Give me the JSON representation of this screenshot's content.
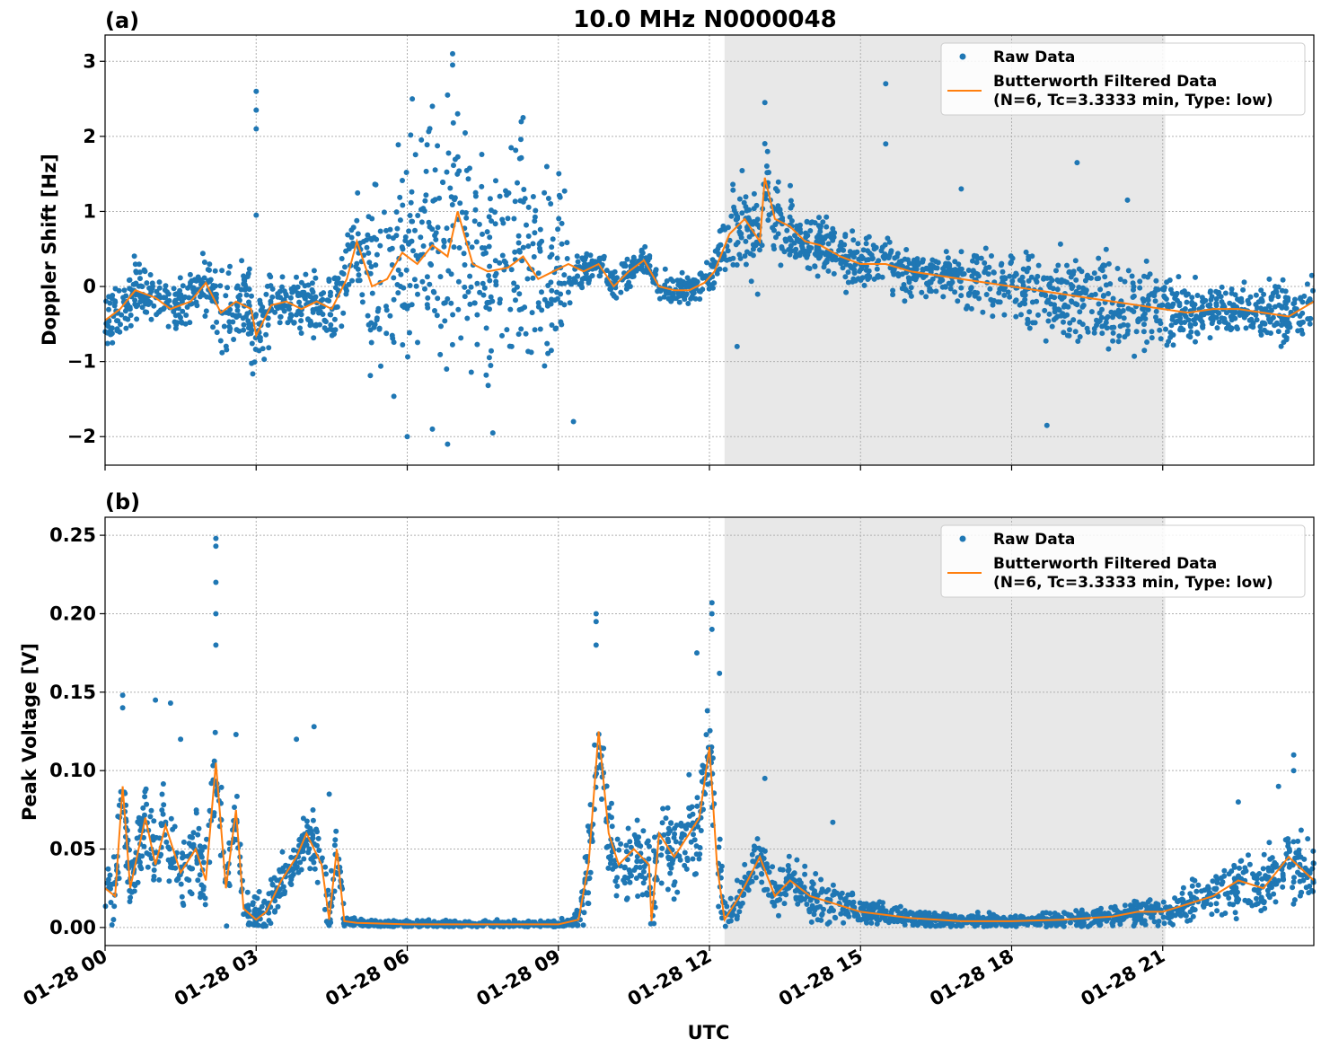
{
  "figure_title": "10.0 MHz N0000048",
  "xlabel": "UTC",
  "x_tick_labels": [
    "01-28 00",
    "01-28 03",
    "01-28 06",
    "01-28 09",
    "01-28 12",
    "01-28 15",
    "01-28 18",
    "01-28 21"
  ],
  "legend": {
    "raw": "Raw Data",
    "filtered_line1": "Butterworth Filtered Data",
    "filtered_line2": "(N=6, Tc=3.3333 min, Type: low)",
    "placement": "upper-right"
  },
  "colors": {
    "raw": "#1f77b4",
    "filtered": "#ff7f0e",
    "shade": "#e8e8e8"
  },
  "chart_data": [
    {
      "type": "scatter",
      "panel_label": "(a)",
      "title": "10.0 MHz N0000048",
      "xlabel": "",
      "ylabel": "Doppler Shift [Hz]",
      "x_unit": "hours UTC (2025-01-28)",
      "xlim": [
        0,
        24
      ],
      "ylim": [
        -2.38,
        3.35
      ],
      "y_ticks": [
        -2,
        -1,
        0,
        1,
        2,
        3
      ],
      "y_tick_labels": [
        "−2",
        "−1",
        "0",
        "1",
        "2",
        "3"
      ],
      "grid": true,
      "shaded_interval": [
        12.3,
        21.05
      ],
      "series": [
        {
          "name": "Butterworth Filtered Data",
          "x": [
            0,
            0.3,
            0.6,
            1.0,
            1.3,
            1.7,
            2.0,
            2.3,
            2.6,
            2.9,
            3.0,
            3.3,
            3.6,
            3.9,
            4.2,
            4.5,
            4.8,
            5.0,
            5.3,
            5.6,
            5.9,
            6.2,
            6.5,
            6.8,
            7.0,
            7.3,
            7.6,
            8.0,
            8.3,
            8.6,
            8.9,
            9.2,
            9.5,
            9.8,
            10.1,
            10.4,
            10.7,
            11.0,
            11.3,
            11.6,
            11.9,
            12.1,
            12.4,
            12.7,
            13.0,
            13.1,
            13.3,
            13.6,
            13.9,
            14.2,
            14.6,
            15.0,
            15.5,
            16.0,
            16.5,
            17.0,
            17.5,
            18.0,
            18.5,
            19.0,
            19.5,
            20.0,
            20.5,
            21.0,
            21.5,
            22.0,
            22.5,
            23.0,
            23.5,
            24.0
          ],
          "y": [
            -0.45,
            -0.3,
            -0.05,
            -0.15,
            -0.3,
            -0.2,
            0.05,
            -0.35,
            -0.2,
            -0.3,
            -0.65,
            -0.25,
            -0.2,
            -0.3,
            -0.2,
            -0.3,
            0.1,
            0.6,
            0.0,
            0.1,
            0.45,
            0.3,
            0.55,
            0.4,
            1.0,
            0.3,
            0.2,
            0.25,
            0.4,
            0.1,
            0.2,
            0.3,
            0.2,
            0.3,
            0.0,
            0.2,
            0.35,
            0.0,
            -0.05,
            -0.05,
            0.05,
            0.2,
            0.7,
            0.9,
            0.6,
            1.45,
            0.9,
            0.8,
            0.6,
            0.55,
            0.4,
            0.3,
            0.3,
            0.2,
            0.15,
            0.1,
            0.05,
            0.0,
            -0.05,
            -0.1,
            -0.15,
            -0.2,
            -0.25,
            -0.3,
            -0.35,
            -0.3,
            -0.3,
            -0.35,
            -0.4,
            -0.2
          ]
        },
        {
          "name": "Raw Data",
          "spread_x": [
            0,
            1,
            2,
            2.9,
            3.0,
            3.5,
            4.0,
            4.5,
            5.0,
            5.5,
            6.0,
            7.0,
            8.0,
            9.0,
            9.5,
            10.0,
            11.0,
            12.0,
            12.3,
            13.0,
            14.0,
            15.0,
            16.0,
            17.0,
            18.0,
            19.0,
            20.0,
            21.0,
            22.0,
            23.0,
            24.0
          ],
          "spread_y": [
            0.3,
            0.3,
            0.3,
            0.5,
            0.45,
            0.25,
            0.3,
            0.4,
            0.5,
            1.1,
            1.1,
            1.1,
            1.1,
            1.0,
            0.15,
            0.15,
            0.15,
            0.15,
            0.35,
            0.45,
            0.3,
            0.25,
            0.25,
            0.25,
            0.35,
            0.45,
            0.45,
            0.35,
            0.25,
            0.3,
            0.3
          ],
          "outliers": [
            [
              3.0,
              2.6
            ],
            [
              3.0,
              2.35
            ],
            [
              3.0,
              2.1
            ],
            [
              3.0,
              0.95
            ],
            [
              6.9,
              3.1
            ],
            [
              6.9,
              2.95
            ],
            [
              6.8,
              2.55
            ],
            [
              6.1,
              2.5
            ],
            [
              6.5,
              2.4
            ],
            [
              7.0,
              2.3
            ],
            [
              8.3,
              2.25
            ],
            [
              6.0,
              -2.0
            ],
            [
              6.5,
              -1.9
            ],
            [
              6.8,
              -2.1
            ],
            [
              7.7,
              -1.95
            ],
            [
              9.3,
              -1.8
            ],
            [
              15.5,
              2.7
            ],
            [
              15.5,
              1.9
            ],
            [
              18.7,
              -1.85
            ],
            [
              19.3,
              1.65
            ],
            [
              17.0,
              1.3
            ],
            [
              20.3,
              1.15
            ],
            [
              12.55,
              -0.8
            ],
            [
              13.1,
              2.45
            ]
          ]
        }
      ]
    },
    {
      "type": "scatter",
      "panel_label": "(b)",
      "title": "",
      "xlabel": "UTC",
      "ylabel": "Peak Voltage [V]",
      "x_unit": "hours UTC (2025-01-28)",
      "xlim": [
        0,
        24
      ],
      "ylim": [
        -0.0115,
        0.2615
      ],
      "y_ticks": [
        0.0,
        0.05,
        0.1,
        0.15,
        0.2,
        0.25
      ],
      "y_tick_labels": [
        "0.00",
        "0.05",
        "0.10",
        "0.15",
        "0.20",
        "0.25"
      ],
      "grid": true,
      "shaded_interval": [
        12.3,
        21.05
      ],
      "series": [
        {
          "name": "Butterworth Filtered Data",
          "x": [
            0,
            0.2,
            0.35,
            0.5,
            0.8,
            1.0,
            1.2,
            1.5,
            1.8,
            2.0,
            2.2,
            2.4,
            2.6,
            2.75,
            3.0,
            3.2,
            3.5,
            3.8,
            4.0,
            4.3,
            4.45,
            4.6,
            4.75,
            5.0,
            6.0,
            7.0,
            8.0,
            9.0,
            9.4,
            9.6,
            9.8,
            10.0,
            10.2,
            10.5,
            10.8,
            10.85,
            11.0,
            11.3,
            11.5,
            11.8,
            12.0,
            12.15,
            12.3,
            12.6,
            13.0,
            13.3,
            13.6,
            14.0,
            14.5,
            15.0,
            15.5,
            16.0,
            17.0,
            18.0,
            19.0,
            20.0,
            20.5,
            21.0,
            21.5,
            22.0,
            22.5,
            23.0,
            23.5,
            24.0
          ],
          "y": [
            0.025,
            0.02,
            0.09,
            0.025,
            0.07,
            0.04,
            0.065,
            0.035,
            0.05,
            0.03,
            0.105,
            0.025,
            0.075,
            0.012,
            0.005,
            0.01,
            0.03,
            0.045,
            0.06,
            0.04,
            0.005,
            0.05,
            0.004,
            0.003,
            0.002,
            0.002,
            0.002,
            0.002,
            0.005,
            0.04,
            0.125,
            0.06,
            0.04,
            0.05,
            0.04,
            0.004,
            0.06,
            0.045,
            0.055,
            0.07,
            0.115,
            0.04,
            0.005,
            0.02,
            0.045,
            0.02,
            0.03,
            0.02,
            0.015,
            0.01,
            0.008,
            0.006,
            0.004,
            0.004,
            0.005,
            0.007,
            0.01,
            0.01,
            0.015,
            0.02,
            0.03,
            0.025,
            0.045,
            0.03
          ]
        },
        {
          "name": "Raw Data",
          "spread_x": [
            0,
            2.5,
            2.8,
            3.2,
            4.6,
            4.8,
            9.3,
            9.6,
            10.0,
            11.0,
            12.2,
            12.4,
            13.0,
            14.0,
            15.0,
            16.0,
            18.0,
            20.0,
            21.0,
            22.0,
            23.0,
            24.0
          ],
          "spread_y": [
            0.018,
            0.02,
            0.01,
            0.012,
            0.015,
            0.002,
            0.002,
            0.02,
            0.02,
            0.02,
            0.02,
            0.008,
            0.012,
            0.01,
            0.006,
            0.004,
            0.003,
            0.005,
            0.007,
            0.012,
            0.016,
            0.016
          ],
          "outliers": [
            [
              0.35,
              0.148
            ],
            [
              0.35,
              0.14
            ],
            [
              1.0,
              0.145
            ],
            [
              1.3,
              0.143
            ],
            [
              1.5,
              0.12
            ],
            [
              2.2,
              0.248
            ],
            [
              2.2,
              0.243
            ],
            [
              2.2,
              0.22
            ],
            [
              2.2,
              0.2
            ],
            [
              2.2,
              0.18
            ],
            [
              2.6,
              0.123
            ],
            [
              3.8,
              0.12
            ],
            [
              4.15,
              0.128
            ],
            [
              4.45,
              0.085
            ],
            [
              9.75,
              0.2
            ],
            [
              9.75,
              0.195
            ],
            [
              9.75,
              0.18
            ],
            [
              11.75,
              0.175
            ],
            [
              12.05,
              0.207
            ],
            [
              12.05,
              0.2
            ],
            [
              12.05,
              0.19
            ],
            [
              12.2,
              0.162
            ],
            [
              13.1,
              0.095
            ],
            [
              14.45,
              0.067
            ],
            [
              23.6,
              0.11
            ],
            [
              23.6,
              0.1
            ],
            [
              22.5,
              0.08
            ],
            [
              23.3,
              0.09
            ]
          ]
        }
      ]
    }
  ]
}
